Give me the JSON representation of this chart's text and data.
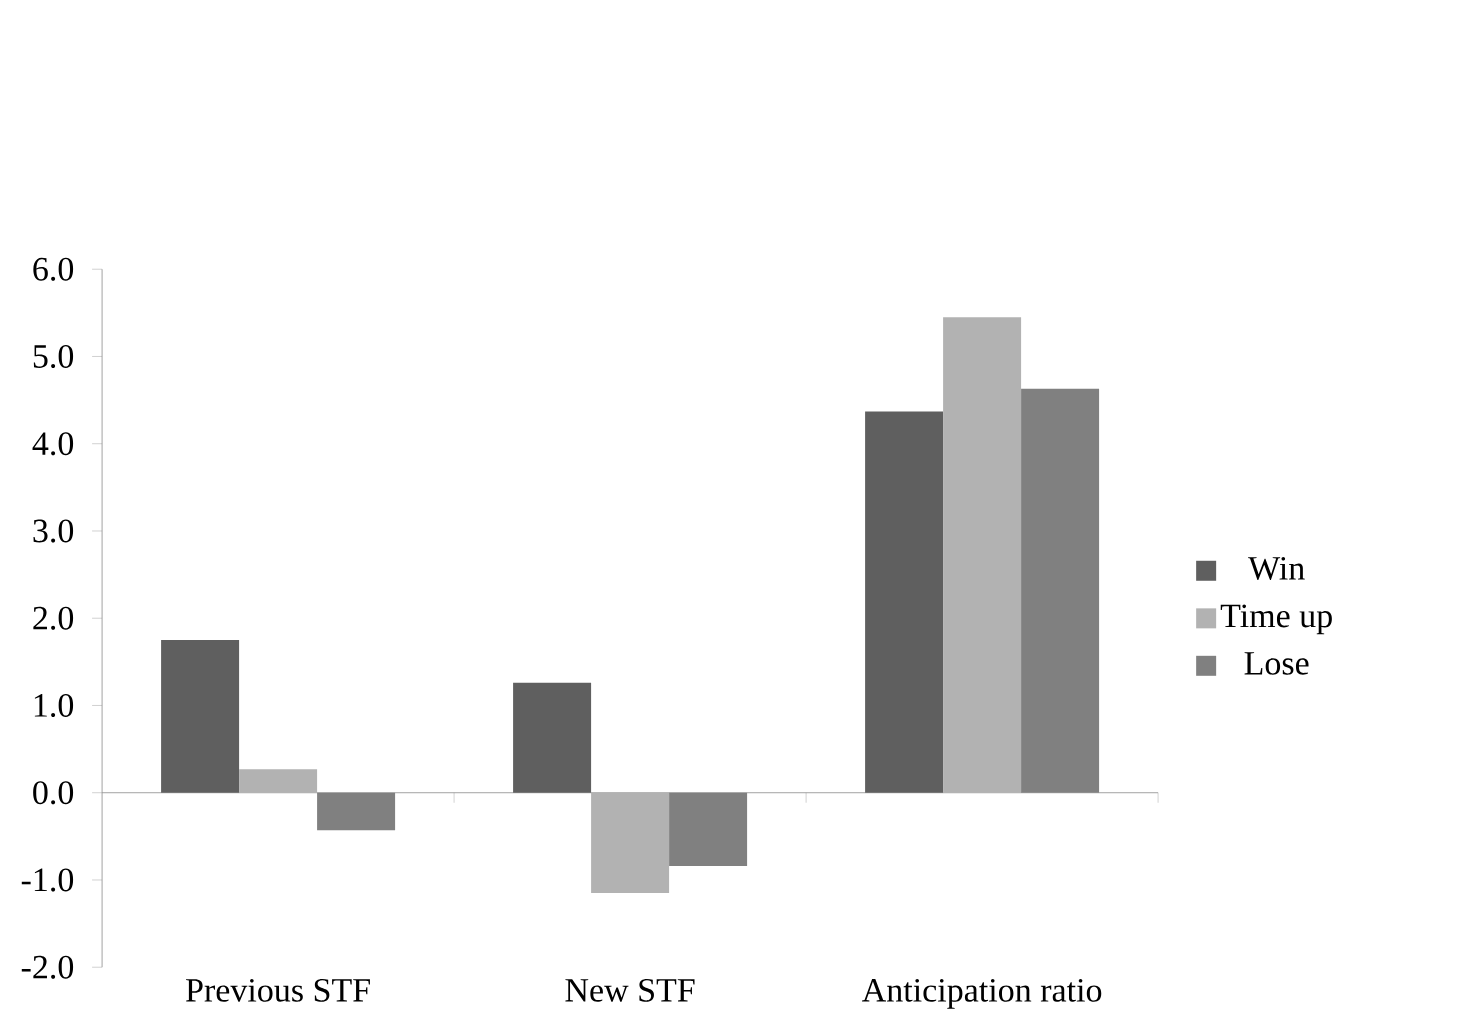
{
  "chart_data": {
    "type": "bar",
    "categories": [
      "Previous STF",
      "New STF",
      "Anticipation ratio"
    ],
    "series": [
      {
        "name": "Win",
        "color": "#5f5f5f",
        "values": [
          1.75,
          1.26,
          4.37
        ]
      },
      {
        "name": "Time up",
        "color": "#b2b2b2",
        "values": [
          0.27,
          -1.15,
          5.45
        ]
      },
      {
        "name": "Lose",
        "color": "#808080",
        "values": [
          -0.43,
          -0.84,
          4.63
        ]
      }
    ],
    "ylim": [
      -2,
      6
    ],
    "yticks": [
      {
        "value": -2,
        "label": "-2.0"
      },
      {
        "value": -1,
        "label": "-1.0"
      },
      {
        "value": 0,
        "label": "0.0"
      },
      {
        "value": 1,
        "label": "1.0"
      },
      {
        "value": 2,
        "label": "2.0"
      },
      {
        "value": 3,
        "label": "3.0"
      },
      {
        "value": 4,
        "label": "4.0"
      },
      {
        "value": 5,
        "label": "5.0"
      },
      {
        "value": 6,
        "label": "6.0"
      }
    ],
    "legend": "right"
  }
}
